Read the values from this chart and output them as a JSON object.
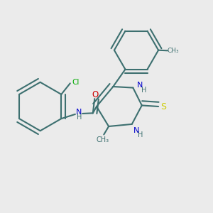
{
  "bg_color": "#ebebeb",
  "bond_color": "#3d7070",
  "line_width": 1.5,
  "atom_colors": {
    "N": "#0000cc",
    "O": "#cc0000",
    "S": "#cccc00",
    "Cl": "#00aa00",
    "H": "#3d7070",
    "C": "#3d7070"
  },
  "figsize": [
    3.0,
    3.0
  ],
  "dpi": 100
}
